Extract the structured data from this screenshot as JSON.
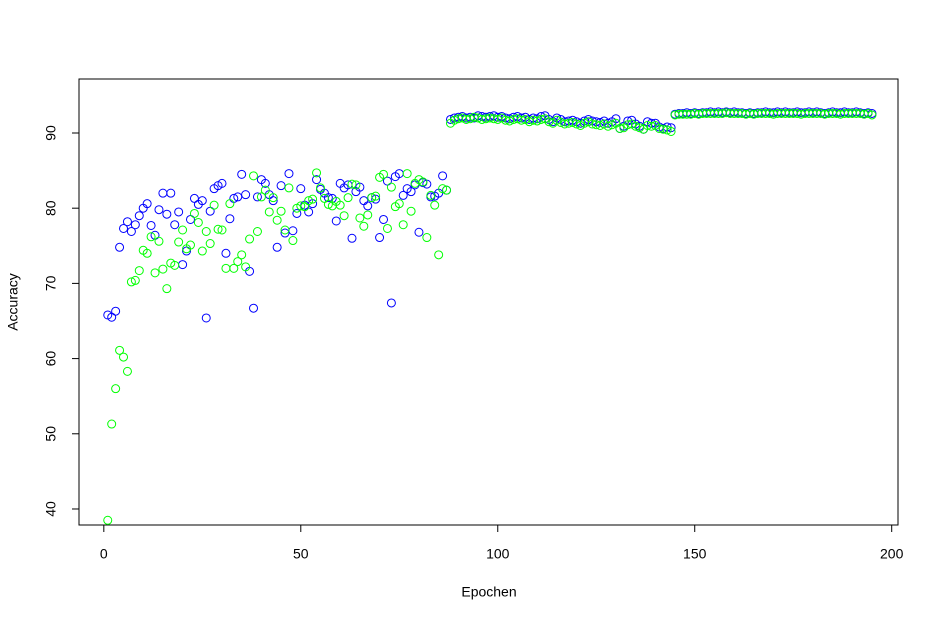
{
  "chart_data": {
    "type": "scatter",
    "x_label": "Epochen",
    "y_label": "Accuracy",
    "xlim": [
      -6.3,
      201.6
    ],
    "ylim": [
      37.87,
      97.18
    ],
    "xticks": [
      0,
      50,
      100,
      150,
      200
    ],
    "yticks": [
      40,
      50,
      60,
      70,
      80,
      90
    ],
    "x": [
      1,
      2,
      3,
      4,
      5,
      6,
      7,
      8,
      9,
      10,
      11,
      12,
      13,
      14,
      15,
      16,
      17,
      18,
      19,
      20,
      21,
      22,
      23,
      24,
      25,
      26,
      27,
      28,
      29,
      30,
      31,
      32,
      33,
      34,
      35,
      36,
      37,
      38,
      39,
      40,
      41,
      42,
      43,
      44,
      45,
      46,
      47,
      48,
      49,
      50,
      51,
      52,
      53,
      54,
      55,
      56,
      57,
      58,
      59,
      60,
      61,
      62,
      63,
      64,
      65,
      66,
      67,
      68,
      69,
      70,
      71,
      72,
      73,
      74,
      75,
      76,
      77,
      78,
      79,
      80,
      81,
      82,
      83,
      84,
      85,
      86,
      87,
      88,
      89,
      90,
      91,
      92,
      93,
      94,
      95,
      96,
      97,
      98,
      99,
      100,
      101,
      102,
      103,
      104,
      105,
      106,
      107,
      108,
      109,
      110,
      111,
      112,
      113,
      114,
      115,
      116,
      117,
      118,
      119,
      120,
      121,
      122,
      123,
      124,
      125,
      126,
      127,
      128,
      129,
      130,
      131,
      132,
      133,
      134,
      135,
      136,
      137,
      138,
      139,
      140,
      141,
      142,
      143,
      144,
      145,
      146,
      147,
      148,
      149,
      150,
      151,
      152,
      153,
      154,
      155,
      156,
      157,
      158,
      159,
      160,
      161,
      162,
      163,
      164,
      165,
      166,
      167,
      168,
      169,
      170,
      171,
      172,
      173,
      174,
      175,
      176,
      177,
      178,
      179,
      180,
      181,
      182,
      183,
      184,
      185,
      186,
      187,
      188,
      189,
      190,
      191,
      192,
      193,
      194,
      195
    ],
    "series": [
      {
        "color": "#0000ff",
        "values": [
          65.8,
          65.5,
          66.3,
          74.8,
          77.3,
          78.2,
          76.9,
          77.8,
          79,
          80,
          80.6,
          77.7,
          76.4,
          79.8,
          82,
          79.2,
          82,
          77.8,
          79.5,
          72.5,
          74.3,
          78.5,
          81.3,
          80.5,
          81,
          65.4,
          79.6,
          82.6,
          83,
          83.3,
          74,
          78.6,
          81.3,
          81.5,
          84.5,
          81.8,
          71.6,
          66.7,
          81.5,
          83.8,
          83.3,
          81.8,
          81,
          74.8,
          83,
          76.7,
          84.6,
          77,
          79.3,
          82.6,
          80.4,
          79.5,
          80.6,
          83.8,
          82.5,
          82,
          81.4,
          81.3,
          78.3,
          83.3,
          82.7,
          83.1,
          76,
          82.2,
          82.8,
          81,
          80.3,
          81.4,
          81.2,
          76.1,
          78.5,
          83.6,
          67.4,
          84.2,
          84.6,
          81.7,
          82.6,
          82.2,
          83.1,
          76.8,
          83.4,
          83.2,
          81.5,
          81.6,
          82,
          84.3,
          82.4,
          91.8,
          92.0,
          92.1,
          92.2,
          92.0,
          92.1,
          92.0,
          92.3,
          92.2,
          92.1,
          92.2,
          92.3,
          92.1,
          92.2,
          92.0,
          91.9,
          92.1,
          92.2,
          92.0,
          92.1,
          91.8,
          92.0,
          91.9,
          92.2,
          92.3,
          91.8,
          91.5,
          92.0,
          91.8,
          91.5,
          91.6,
          91.7,
          91.5,
          91.3,
          91.6,
          91.8,
          91.6,
          91.5,
          91.4,
          91.6,
          91.3,
          91.5,
          91.9,
          90.6,
          90.9,
          91.6,
          91.7,
          91.2,
          90.9,
          90.5,
          91.5,
          91.3,
          91.3,
          90.8,
          90.6,
          90.8,
          90.7,
          92.5,
          92.6,
          92.6,
          92.7,
          92.6,
          92.7,
          92.6,
          92.7,
          92.7,
          92.8,
          92.7,
          92.8,
          92.7,
          92.8,
          92.7,
          92.8,
          92.7,
          92.7,
          92.6,
          92.7,
          92.6,
          92.7,
          92.7,
          92.8,
          92.7,
          92.7,
          92.8,
          92.7,
          92.8,
          92.7,
          92.7,
          92.8,
          92.7,
          92.7,
          92.8,
          92.7,
          92.8,
          92.7,
          92.6,
          92.7,
          92.8,
          92.7,
          92.7,
          92.8,
          92.7,
          92.7,
          92.8,
          92.7,
          92.6,
          92.7,
          92.6
        ]
      },
      {
        "color": "#00ff00",
        "values": [
          38.5,
          51.3,
          56,
          61.1,
          60.2,
          58.3,
          70.2,
          70.4,
          71.7,
          74.4,
          74,
          76.2,
          71.4,
          75.6,
          71.9,
          69.3,
          72.7,
          72.4,
          75.5,
          77.1,
          74.6,
          75.1,
          79.3,
          78.1,
          74.3,
          76.9,
          75.3,
          80.4,
          77.2,
          77.1,
          72,
          80.6,
          72,
          72.9,
          73.8,
          72.2,
          75.9,
          84.3,
          76.9,
          81.5,
          82.4,
          79.5,
          81.4,
          78.4,
          79.6,
          77.1,
          82.7,
          75.7,
          80,
          80.3,
          80.2,
          81,
          81.2,
          84.7,
          82.7,
          81.3,
          80.5,
          80.3,
          80.9,
          80.4,
          79,
          81.4,
          83.2,
          83.1,
          78.7,
          77.6,
          79.1,
          81.4,
          81.6,
          84.1,
          84.5,
          77.3,
          82.8,
          80.2,
          80.6,
          77.8,
          84.6,
          79.6,
          83.3,
          83.8,
          83.5,
          76.1,
          81.7,
          80.4,
          73.8,
          82.6,
          82.4,
          91.3,
          91.7,
          91.9,
          92.0,
          91.8,
          91.9,
          92.1,
          92.0,
          91.8,
          91.9,
          92.0,
          91.9,
          91.8,
          92.0,
          91.7,
          91.6,
          91.8,
          91.9,
          91.7,
          91.8,
          91.5,
          91.7,
          91.6,
          91.8,
          91.9,
          91.5,
          91.3,
          91.7,
          91.4,
          91.2,
          91.3,
          91.4,
          91.2,
          91.0,
          91.3,
          91.5,
          91.2,
          91.1,
          91.0,
          91.2,
          90.9,
          91.1,
          91.3,
          90.6,
          90.7,
          91.1,
          91.2,
          90.9,
          90.7,
          90.5,
          91.0,
          90.9,
          91.0,
          90.6,
          90.5,
          90.4,
          90.2,
          92.4,
          92.5,
          92.5,
          92.5,
          92.5,
          92.6,
          92.5,
          92.6,
          92.6,
          92.6,
          92.6,
          92.6,
          92.6,
          92.7,
          92.6,
          92.6,
          92.6,
          92.6,
          92.5,
          92.6,
          92.5,
          92.6,
          92.6,
          92.6,
          92.6,
          92.5,
          92.6,
          92.6,
          92.6,
          92.6,
          92.6,
          92.6,
          92.5,
          92.6,
          92.6,
          92.6,
          92.6,
          92.6,
          92.5,
          92.6,
          92.6,
          92.6,
          92.5,
          92.6,
          92.6,
          92.6,
          92.6,
          92.6,
          92.5,
          92.6,
          92.4
        ]
      }
    ]
  }
}
